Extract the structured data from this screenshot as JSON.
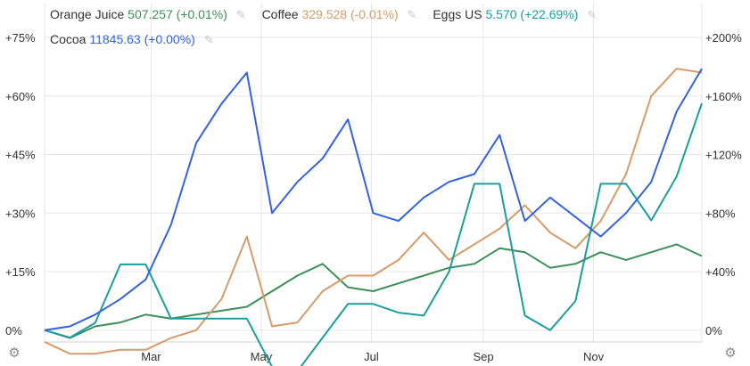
{
  "legend": {
    "rows": [
      [
        {
          "name": "Orange Juice",
          "value": "507.257",
          "change": "(+0.01%)",
          "color": "#3d8f5a"
        },
        {
          "name": "Coffee",
          "value": "329.528",
          "change": "(-0.01%)",
          "color": "#d79b6a"
        },
        {
          "name": "Eggs US",
          "value": "5.570",
          "change": "(+22.69%)",
          "color": "#1a9e9e"
        }
      ],
      [
        {
          "name": "Cocoa",
          "value": "11845.63",
          "change": "(+0.00%)",
          "color": "#3461e0"
        }
      ]
    ],
    "edit_icon": "pencil-icon"
  },
  "settings_icon": "gear-icon",
  "chart_data": {
    "type": "line",
    "x": [
      "2024-01-02",
      "2024-01-16",
      "2024-01-30",
      "2024-02-13",
      "2024-02-27",
      "2024-03-12",
      "2024-03-26",
      "2024-04-09",
      "2024-04-23",
      "2024-05-07",
      "2024-05-21",
      "2024-06-04",
      "2024-06-18",
      "2024-07-02",
      "2024-07-16",
      "2024-07-30",
      "2024-08-13",
      "2024-08-27",
      "2024-09-10",
      "2024-09-24",
      "2024-10-08",
      "2024-10-22",
      "2024-11-05",
      "2024-11-19",
      "2024-12-03",
      "2024-12-17",
      "2024-12-31"
    ],
    "x_ticks": [
      "Mar",
      "May",
      "Jul",
      "Sep",
      "Nov"
    ],
    "x_tick_dates": [
      "2024-03-01",
      "2024-05-01",
      "2024-07-01",
      "2024-09-01",
      "2024-11-01"
    ],
    "y_left": {
      "ticks": [
        "+75%",
        "+60%",
        "+45%",
        "+30%",
        "+15%",
        "0%"
      ],
      "range": [
        -3,
        75
      ]
    },
    "y_right": {
      "ticks": [
        "+200%",
        "+160%",
        "+120%",
        "+80%",
        "+40%",
        "0%"
      ],
      "range": [
        -8,
        200
      ]
    },
    "grid": true,
    "legend_position": "top-left",
    "series": [
      {
        "name": "Orange Juice",
        "axis": "left",
        "color": "#3d8f5a",
        "values": [
          0,
          -2,
          1,
          2,
          4,
          3,
          4,
          5,
          6,
          10,
          14,
          17,
          11,
          10,
          12,
          14,
          16,
          17,
          21,
          20,
          16,
          17,
          20,
          18,
          20,
          22,
          19
        ]
      },
      {
        "name": "Coffee",
        "axis": "left",
        "color": "#d79b6a",
        "values": [
          -3,
          -6,
          -6,
          -5,
          -5,
          -2,
          0,
          8,
          24,
          1,
          2,
          10,
          14,
          14,
          18,
          25,
          18,
          22,
          26,
          32,
          25,
          21,
          28,
          40,
          60,
          67,
          66
        ]
      },
      {
        "name": "Eggs US",
        "axis": "right",
        "color": "#1a9e9e",
        "values": [
          0,
          -5,
          5,
          45,
          45,
          8,
          8,
          8,
          8,
          -25,
          -28,
          -5,
          18,
          18,
          12,
          10,
          40,
          100,
          100,
          10,
          0,
          20,
          100,
          100,
          75,
          105,
          155
        ]
      },
      {
        "name": "Cocoa",
        "axis": "left",
        "color": "#3461e0",
        "values": [
          0,
          1,
          4,
          8,
          13,
          27,
          48,
          58,
          66,
          30,
          38,
          44,
          54,
          30,
          28,
          34,
          38,
          40,
          50,
          28,
          34,
          29,
          24,
          30,
          38,
          56,
          67
        ]
      }
    ]
  }
}
